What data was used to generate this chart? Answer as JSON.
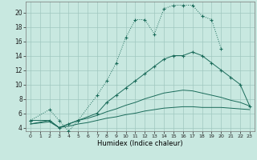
{
  "xlabel": "Humidex (Indice chaleur)",
  "bg_color": "#c8e8e0",
  "grid_color": "#a0c8c0",
  "line_color": "#1a6b5a",
  "xlim": [
    -0.5,
    23.5
  ],
  "ylim": [
    3.5,
    21.5
  ],
  "xticks": [
    0,
    1,
    2,
    3,
    4,
    5,
    6,
    7,
    8,
    9,
    10,
    11,
    12,
    13,
    14,
    15,
    16,
    17,
    18,
    19,
    20,
    21,
    22,
    23
  ],
  "yticks": [
    4,
    6,
    8,
    10,
    12,
    14,
    16,
    18,
    20
  ],
  "line1_x": [
    0,
    2,
    3,
    4,
    5,
    7,
    8,
    9,
    10,
    11,
    12,
    13,
    14,
    15,
    16,
    17,
    18,
    19,
    20
  ],
  "line1_y": [
    5.0,
    6.5,
    5.0,
    3.5,
    5.0,
    8.5,
    10.5,
    13.0,
    16.5,
    19.0,
    19.0,
    17.0,
    20.5,
    21.0,
    21.0,
    21.0,
    19.5,
    19.0,
    15.0
  ],
  "line2_x": [
    0,
    2,
    3,
    4,
    5,
    7,
    8,
    9,
    10,
    11,
    12,
    13,
    14,
    15,
    16,
    17,
    18,
    19,
    20,
    21,
    22,
    23
  ],
  "line2_y": [
    5.0,
    5.0,
    4.0,
    4.5,
    5.0,
    6.0,
    7.5,
    8.5,
    9.5,
    10.5,
    11.5,
    12.5,
    13.5,
    14.0,
    14.0,
    14.5,
    14.0,
    13.0,
    12.0,
    11.0,
    10.0,
    7.0
  ],
  "line3_x": [
    0,
    2,
    3,
    4,
    5,
    6,
    7,
    8,
    9,
    10,
    11,
    12,
    13,
    14,
    15,
    16,
    17,
    18,
    19,
    20,
    21,
    22,
    23
  ],
  "line3_y": [
    4.5,
    5.0,
    4.0,
    4.5,
    5.0,
    5.3,
    5.7,
    6.2,
    6.6,
    7.1,
    7.5,
    8.0,
    8.4,
    8.8,
    9.0,
    9.2,
    9.1,
    8.8,
    8.5,
    8.2,
    7.8,
    7.5,
    7.0
  ],
  "line4_x": [
    0,
    2,
    3,
    4,
    5,
    6,
    7,
    8,
    9,
    10,
    11,
    12,
    13,
    14,
    15,
    16,
    17,
    18,
    19,
    20,
    21,
    22,
    23
  ],
  "line4_y": [
    4.5,
    4.8,
    4.0,
    4.2,
    4.5,
    4.7,
    5.0,
    5.3,
    5.5,
    5.8,
    6.0,
    6.3,
    6.5,
    6.7,
    6.8,
    6.9,
    6.9,
    6.8,
    6.8,
    6.8,
    6.7,
    6.6,
    6.5
  ]
}
